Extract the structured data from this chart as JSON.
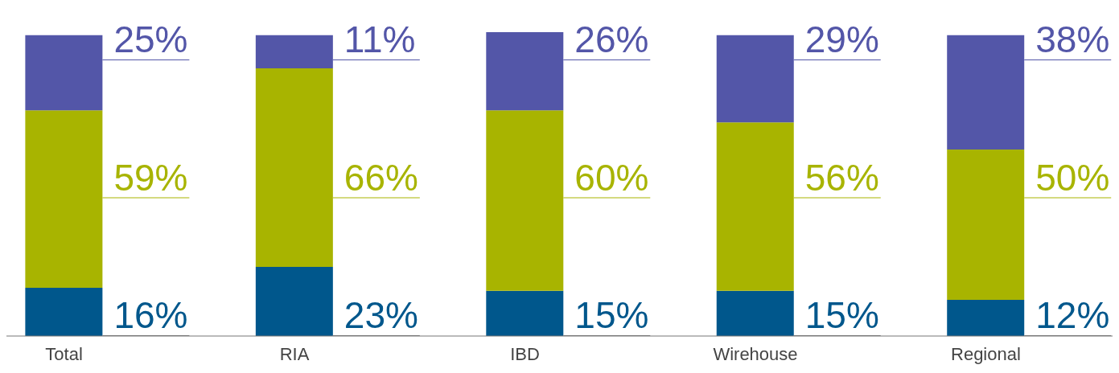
{
  "chart_data": {
    "type": "bar",
    "stacked": true,
    "categories": [
      "Total",
      "RIA",
      "IBD",
      "Wirehouse",
      "Regional"
    ],
    "series": [
      {
        "color": "#00578c",
        "values": [
          16,
          23,
          15,
          15,
          12
        ],
        "value_labels": [
          "16%",
          "23%",
          "15%",
          "15%",
          "12%"
        ]
      },
      {
        "color": "#a8b400",
        "values": [
          59,
          66,
          60,
          56,
          50
        ],
        "value_labels": [
          "59%",
          "66%",
          "60%",
          "56%",
          "50%"
        ]
      },
      {
        "color": "#5356a8",
        "values": [
          25,
          11,
          26,
          29,
          38
        ],
        "value_labels": [
          "25%",
          "11%",
          "26%",
          "29%",
          "38%"
        ]
      }
    ],
    "legend": false,
    "grid": false
  }
}
